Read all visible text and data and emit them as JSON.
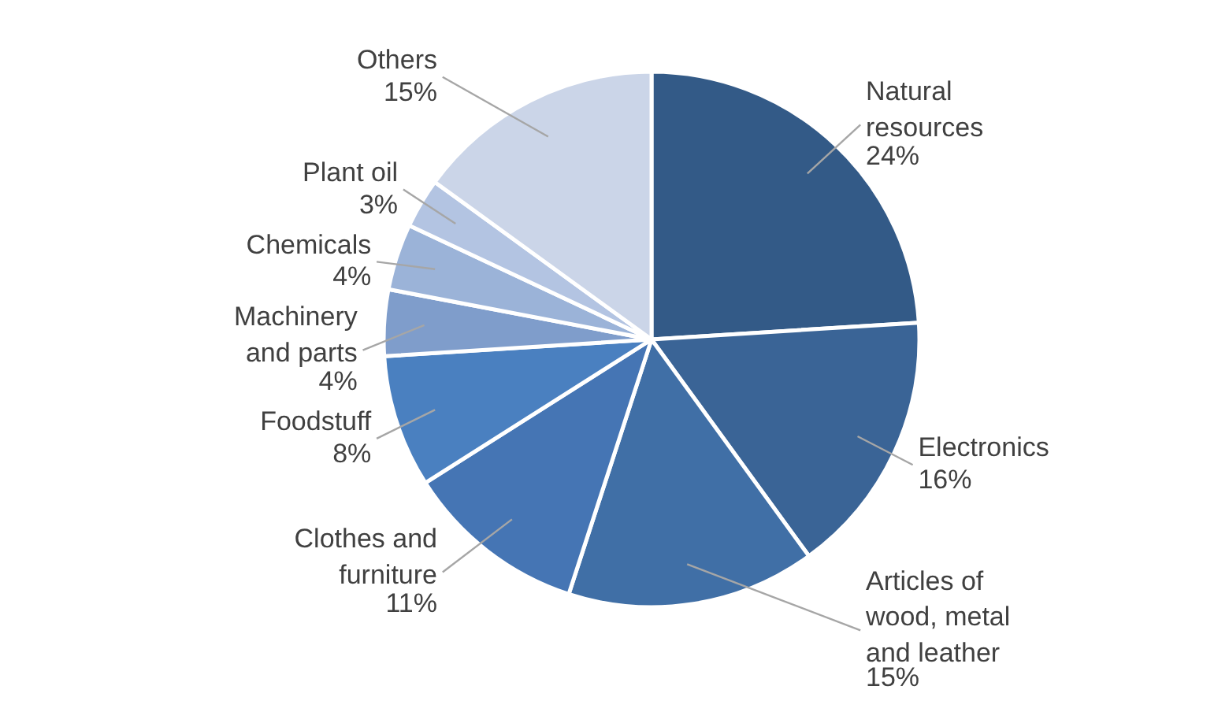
{
  "chart_data": {
    "type": "pie",
    "categories": [
      "Natural\nresources",
      "Electronics",
      "Articles of\nwood, metal\nand leather",
      "Clothes and\nfurniture",
      "Foodstuff",
      "Machinery\nand parts",
      "Chemicals",
      "Plant oil",
      "Others"
    ],
    "values": [
      24,
      16,
      15,
      11,
      8,
      4,
      4,
      3,
      15
    ],
    "value_labels": [
      "24%",
      "16%",
      "15%",
      "11%",
      "8%",
      "4%",
      "4%",
      "3%",
      "15%"
    ],
    "colors": [
      "#335a87",
      "#3a6496",
      "#406fa6",
      "#4575b4",
      "#4a80c0",
      "#7f9dcb",
      "#9bb3d8",
      "#b3c4e2",
      "#cbd5e8"
    ]
  }
}
